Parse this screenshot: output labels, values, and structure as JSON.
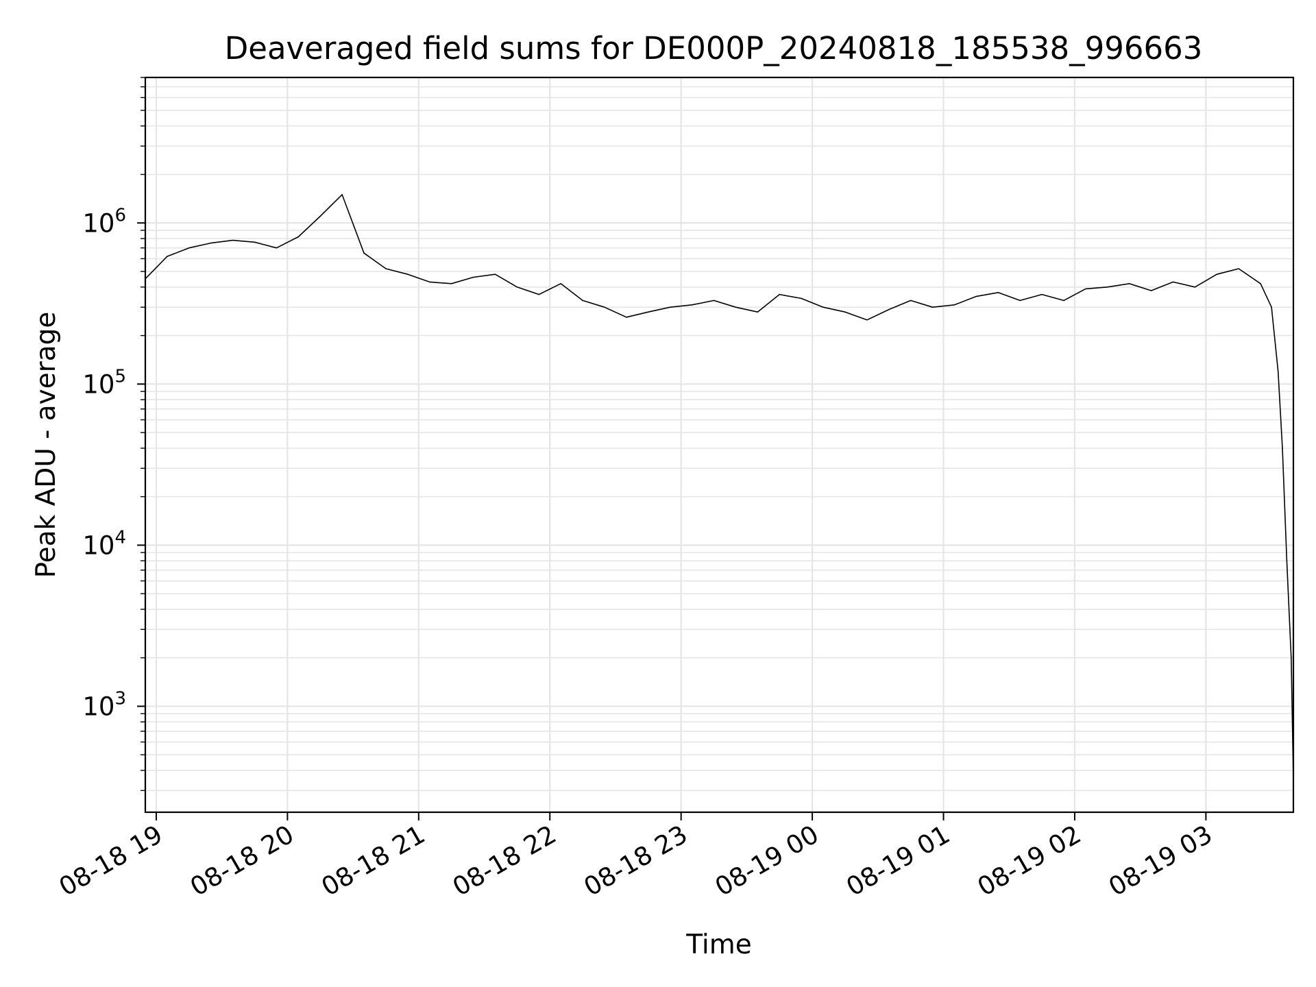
{
  "chart_data": {
    "type": "line",
    "title": "Deaveraged field sums for DE000P_20240818_185538_996663",
    "xlabel": "Time",
    "ylabel": "Peak ADU - average",
    "yscale": "log",
    "ylim": [
      220,
      8000000
    ],
    "xlim": [
      "2024-08-18 18:55",
      "2024-08-19 03:40"
    ],
    "grid": true,
    "line_color": "#000000",
    "grid_color": "#e5e5e5",
    "x_ticks": [
      {
        "value": "2024-08-18 19:00",
        "label": "08-18 19"
      },
      {
        "value": "2024-08-18 20:00",
        "label": "08-18 20"
      },
      {
        "value": "2024-08-18 21:00",
        "label": "08-18 21"
      },
      {
        "value": "2024-08-18 22:00",
        "label": "08-18 22"
      },
      {
        "value": "2024-08-18 23:00",
        "label": "08-18 23"
      },
      {
        "value": "2024-08-19 00:00",
        "label": "08-19 00"
      },
      {
        "value": "2024-08-19 01:00",
        "label": "08-19 01"
      },
      {
        "value": "2024-08-19 02:00",
        "label": "08-19 02"
      },
      {
        "value": "2024-08-19 03:00",
        "label": "08-19 03"
      }
    ],
    "y_ticks": [
      {
        "value": 1000,
        "base": "10",
        "exp": "3"
      },
      {
        "value": 10000,
        "base": "10",
        "exp": "4"
      },
      {
        "value": 100000,
        "base": "10",
        "exp": "5"
      },
      {
        "value": 1000000,
        "base": "10",
        "exp": "6"
      }
    ],
    "series": [
      {
        "x": [
          "2024-08-18 18:55",
          "2024-08-18 19:05",
          "2024-08-18 19:15",
          "2024-08-18 19:25",
          "2024-08-18 19:35",
          "2024-08-18 19:45",
          "2024-08-18 19:55",
          "2024-08-18 20:05",
          "2024-08-18 20:15",
          "2024-08-18 20:25",
          "2024-08-18 20:35",
          "2024-08-18 20:45",
          "2024-08-18 20:55",
          "2024-08-18 21:05",
          "2024-08-18 21:15",
          "2024-08-18 21:25",
          "2024-08-18 21:35",
          "2024-08-18 21:45",
          "2024-08-18 21:55",
          "2024-08-18 22:05",
          "2024-08-18 22:15",
          "2024-08-18 22:25",
          "2024-08-18 22:35",
          "2024-08-18 22:45",
          "2024-08-18 22:55",
          "2024-08-18 23:05",
          "2024-08-18 23:15",
          "2024-08-18 23:25",
          "2024-08-18 23:35",
          "2024-08-18 23:45",
          "2024-08-18 23:55",
          "2024-08-19 00:05",
          "2024-08-19 00:15",
          "2024-08-19 00:25",
          "2024-08-19 00:35",
          "2024-08-19 00:45",
          "2024-08-19 00:55",
          "2024-08-19 01:05",
          "2024-08-19 01:15",
          "2024-08-19 01:25",
          "2024-08-19 01:35",
          "2024-08-19 01:45",
          "2024-08-19 01:55",
          "2024-08-19 02:05",
          "2024-08-19 02:15",
          "2024-08-19 02:25",
          "2024-08-19 02:35",
          "2024-08-19 02:45",
          "2024-08-19 02:55",
          "2024-08-19 03:05",
          "2024-08-19 03:15",
          "2024-08-19 03:25",
          "2024-08-19 03:30",
          "2024-08-19 03:33",
          "2024-08-19 03:35",
          "2024-08-19 03:37",
          "2024-08-19 03:39",
          "2024-08-19 03:40"
        ],
        "y": [
          450000,
          620000,
          700000,
          750000,
          780000,
          760000,
          700000,
          820000,
          1100000,
          1500000,
          650000,
          520000,
          480000,
          430000,
          420000,
          460000,
          480000,
          400000,
          360000,
          420000,
          330000,
          300000,
          260000,
          280000,
          300000,
          310000,
          330000,
          300000,
          280000,
          360000,
          340000,
          300000,
          280000,
          250000,
          290000,
          330000,
          300000,
          310000,
          350000,
          370000,
          330000,
          360000,
          330000,
          390000,
          400000,
          420000,
          380000,
          430000,
          400000,
          480000,
          520000,
          420000,
          300000,
          120000,
          40000,
          8000,
          2000,
          350
        ]
      }
    ]
  }
}
